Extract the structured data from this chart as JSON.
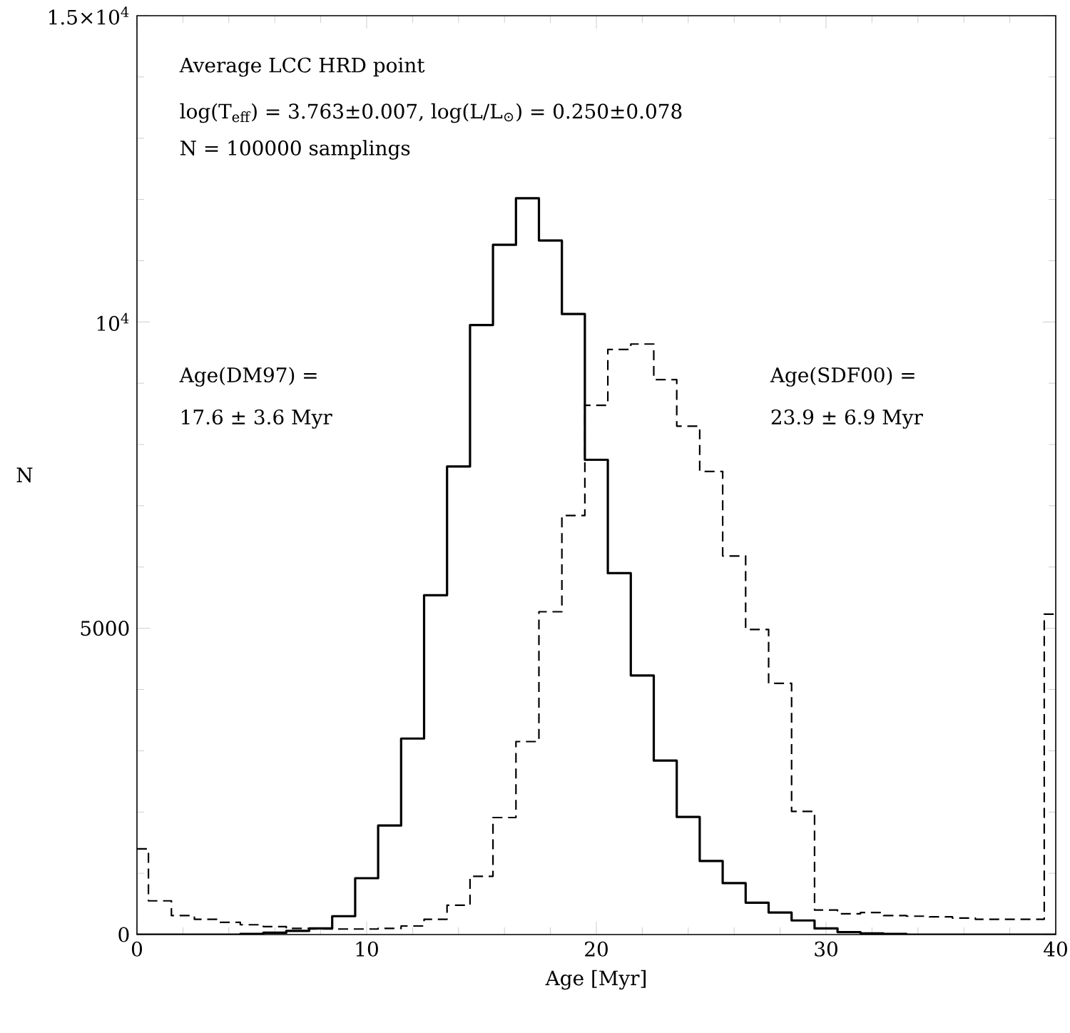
{
  "chart_data": {
    "type": "histogram",
    "bins": [
      0,
      0.5,
      1.5,
      2.5,
      3.5,
      4.5,
      5.5,
      6.5,
      7.5,
      8.5,
      9.5,
      10.5,
      11.5,
      12.5,
      13.5,
      14.5,
      15.5,
      16.5,
      17.5,
      18.5,
      19.5,
      20.5,
      21.5,
      22.5,
      23.5,
      24.5,
      25.5,
      26.5,
      27.5,
      28.5,
      29.5,
      30.5,
      31.5,
      32.5,
      33.5,
      34.5,
      35.5,
      36.5,
      37.5,
      38.5,
      39.5,
      40
    ],
    "series": [
      {
        "color": "#000000",
        "line_style": "solid",
        "values": [
          0,
          0,
          0,
          0,
          0,
          10,
          30,
          60,
          100,
          300,
          920,
          1780,
          3200,
          5540,
          7640,
          9950,
          11260,
          12020,
          11330,
          10130,
          7750,
          5900,
          4230,
          2840,
          1920,
          1200,
          840,
          520,
          360,
          230,
          100,
          40,
          20,
          10,
          0,
          0,
          0,
          0,
          0,
          0,
          0
        ]
      },
      {
        "color": "#000000",
        "line_style": "dashed",
        "values": [
          1400,
          550,
          310,
          250,
          200,
          160,
          130,
          100,
          90,
          90,
          90,
          100,
          140,
          250,
          480,
          950,
          1910,
          3150,
          5270,
          6840,
          8640,
          9550,
          9640,
          9060,
          8300,
          7560,
          6180,
          4980,
          4100,
          2010,
          400,
          340,
          360,
          310,
          300,
          290,
          270,
          250,
          250,
          250,
          5230
        ]
      }
    ],
    "xlabel": "Age [Myr]",
    "ylabel": "N",
    "xlim": [
      0,
      40
    ],
    "ylim": [
      0,
      15000
    ],
    "xticks": [
      0,
      10,
      20,
      30,
      40
    ],
    "yticks": [
      0,
      5000,
      {
        "value": 10000,
        "label": "10$^{4}$"
      },
      {
        "value": 15000,
        "label": "1.5×10$^{4}$"
      }
    ],
    "annotations": [
      "Average LCC HRD point",
      "log(T$_{eff}$) = 3.763±0.007, log(L/L$_{⊙}$) = 0.250±0.078",
      "N = 100000 samplings",
      "Age(DM97) =",
      "17.6 ± 3.6 Myr",
      "Age(SDF00) =",
      "23.9 ± 6.9 Myr"
    ]
  }
}
